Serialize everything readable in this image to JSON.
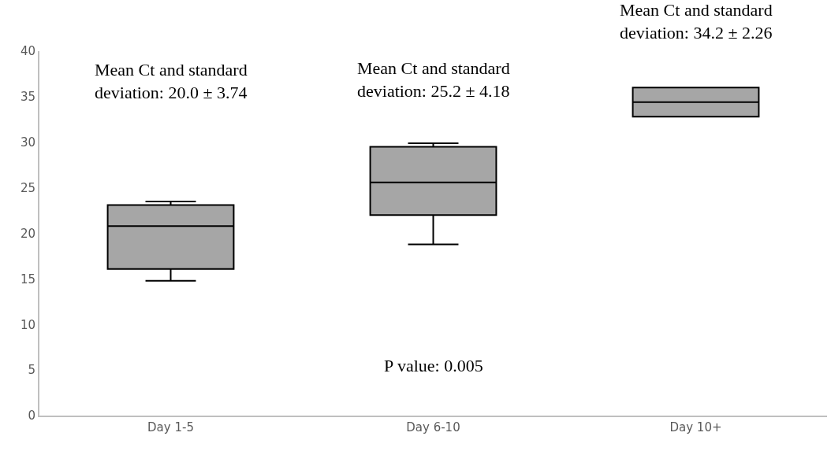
{
  "chart_data": {
    "type": "box",
    "categories": [
      "Day 1-5",
      "Day 6-10",
      "Day 10+"
    ],
    "boxes": [
      {
        "low": 14.8,
        "q1": 16.1,
        "median": 20.8,
        "q3": 23.1,
        "high": 23.5
      },
      {
        "low": 18.8,
        "q1": 22.0,
        "median": 25.6,
        "q3": 29.5,
        "high": 29.9
      },
      {
        "low": 32.8,
        "q1": 32.8,
        "median": 34.4,
        "q3": 36.0,
        "high": 36.0
      }
    ],
    "color": "#a6a6a6",
    "ylim": [
      0,
      40
    ],
    "yticks": [
      0,
      5,
      10,
      15,
      20,
      25,
      30,
      35,
      40
    ],
    "legend": false,
    "annotations": [
      "Mean Ct and standard\ndeviation: 20.0 ± 3.74",
      "Mean Ct and standard\ndeviation: 25.2 ± 4.18",
      "Mean Ct and standard\ndeviation: 34.2 ± 2.26",
      "P value: 0.005"
    ]
  }
}
